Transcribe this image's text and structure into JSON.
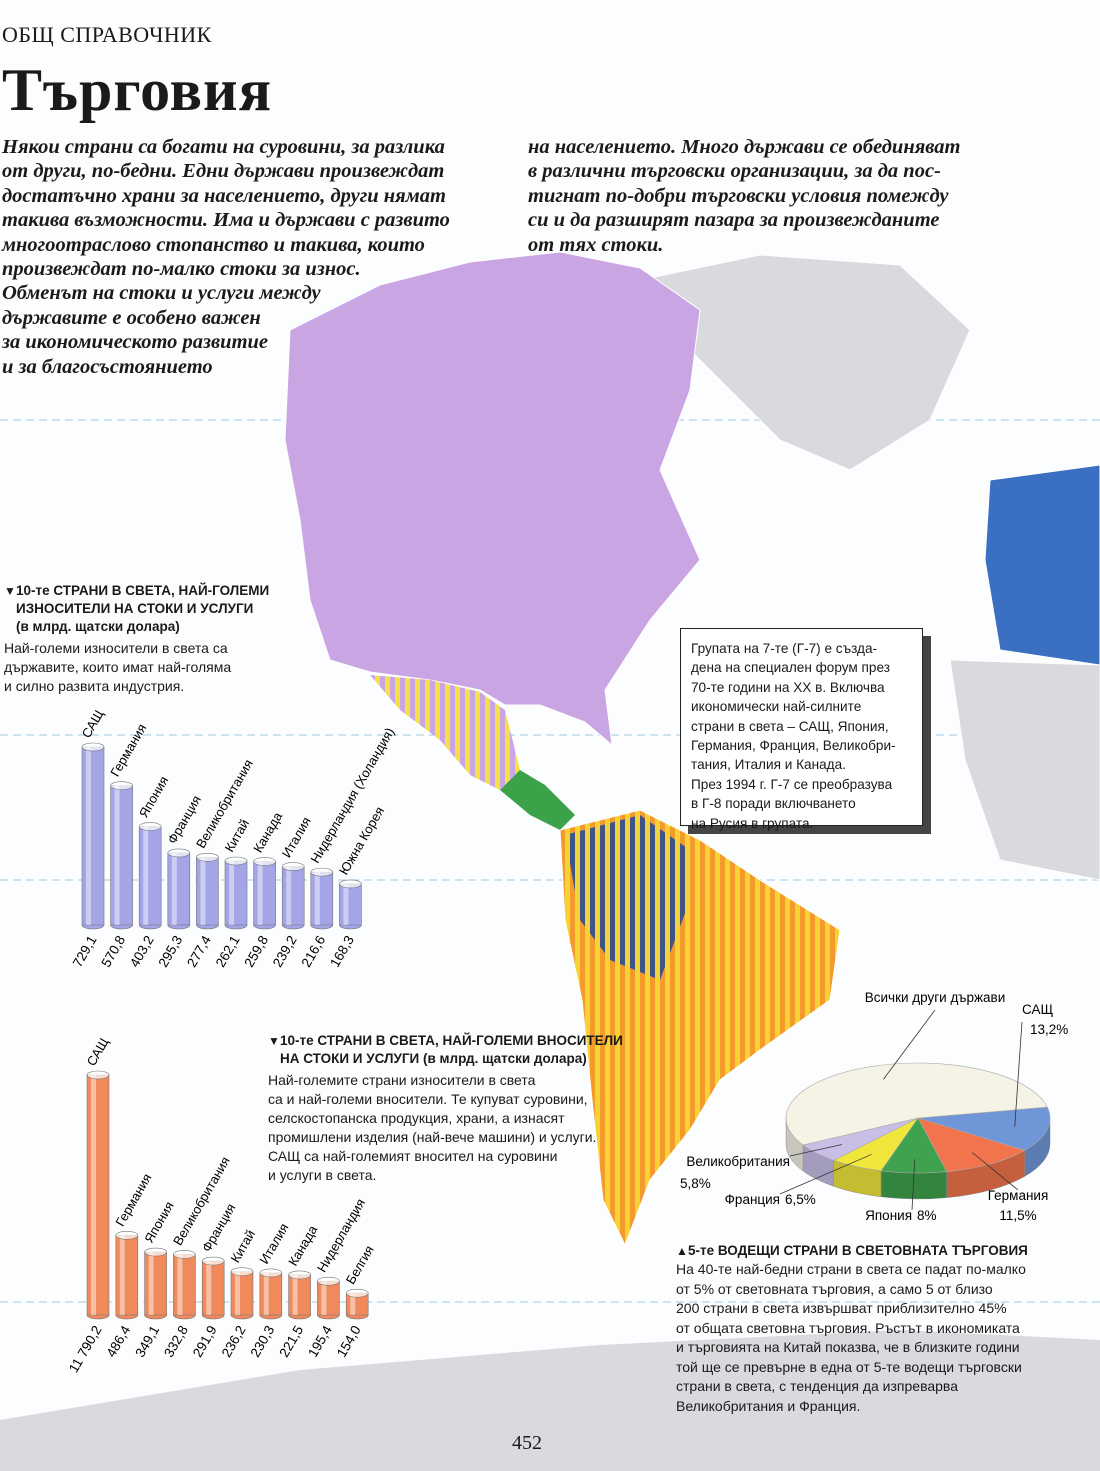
{
  "header": {
    "section": "ОБЩ СПРАВОЧНИК",
    "title": "Търговия"
  },
  "intro": {
    "left": [
      "Някои страни са богати на суровини, за разлика",
      "от други, по-бедни. Едни държави произвеждат",
      "достатъчно храни за населението, други нямат",
      "такива възможности. Има и държави с развито",
      "многоотраслово стопанство и такива, които",
      "произвеждат по-малко стоки за износ.",
      "Обменът на стоки и услуги между",
      "държавите е особено важен",
      "за икономическото развитие",
      "и за благосъстоянието"
    ],
    "right": [
      "на населението. Много държави се обединяват",
      "в различни търговски организации, за да пос-",
      "тигнат по-добри търговски условия помежду",
      "си и да разширят пазара за произвежданите",
      "от тях стоки."
    ]
  },
  "g7_box": {
    "lines": [
      "Групата на 7-те (Г-7) е създа-",
      "дена на специален форум през",
      "70-те години на XX в. Включва",
      "икономически най-силните",
      "страни в света – САЩ, Япония,",
      "Германия, Франция, Великобри-",
      "тания, Италия и Канада.",
      "През 1994 г. Г-7 се преобразува",
      "в Г-8 поради включването",
      "на Русия в групата."
    ]
  },
  "chart_data": [
    {
      "type": "bar",
      "title": [
        "10-те СТРАНИ В СВЕТА, НАЙ-ГОЛЕМИ",
        "ИЗНОСИТЕЛИ НА СТОКИ И УСЛУГИ",
        "(в млрд. щатски долара)"
      ],
      "description": [
        "Най-големи износители в света са",
        "държавите, които имат най-голяма",
        "и силно развита индустрия."
      ],
      "categories": [
        "САЩ",
        "Германия",
        "Япония",
        "Франция",
        "Великобритания",
        "Китай",
        "Канада",
        "Италия",
        "Нидерландия (Холандия)",
        "Южна Корея"
      ],
      "values": [
        729.1,
        570.8,
        403.2,
        295.3,
        277.4,
        262.1,
        259.8,
        239.2,
        216.6,
        168.3
      ],
      "value_labels": [
        "729,1",
        "570,8",
        "403,2",
        "295,3",
        "277,4",
        "262,1",
        "259,8",
        "239,2",
        "216,6",
        "168,3"
      ],
      "color": "#a3a5e6"
    },
    {
      "type": "bar",
      "title": [
        "10-те СТРАНИ В СВЕТА, НАЙ-ГОЛЕМИ ВНОСИТЕЛИ",
        "НА СТОКИ И УСЛУГИ (в млрд. щатски долара)"
      ],
      "description": [
        "Най-големите страни износители в света",
        "са и най-големи вносители. Те купуват суровини,",
        "селскостопанска продукция, храни, а изнасят",
        "промишлени изделия (най-вече машини) и услуги.",
        "САЩ са най-големият вносител на суровини",
        "и услуги в света."
      ],
      "categories": [
        "САЩ",
        "Германия",
        "Япония",
        "Великобритания",
        "Франция",
        "Китай",
        "Италия",
        "Канада",
        "Нидерландия",
        "Белгия"
      ],
      "values": [
        11790.2,
        486.4,
        349.1,
        332.8,
        291.9,
        236.2,
        230.3,
        221.5,
        195.4,
        154.0
      ],
      "value_labels": [
        "11 790,2",
        "486,4",
        "349,1",
        "332,8",
        "291,9",
        "236,2",
        "230,3",
        "221,5",
        "195,4",
        "154,0"
      ],
      "color": "#f08a5c",
      "log_scale": true
    },
    {
      "type": "pie",
      "title": [
        "5-те ВОДЕЩИ СТРАНИ В СВЕТОВНАТА ТЪРГОВИЯ"
      ],
      "description": [
        "На 40-те най-бедни страни в света се падат по-малко",
        "от 5% от световната търговия, а само 5 от близо",
        "200 страни в света извършват приблизително 45%",
        "от общата световна търговия. Ръстът в икономиката",
        "и търговията на Китай показва, че в близките години",
        "той ще се превърне в една от 5-те водещи търговски",
        "страни в света, с тенденция да изпреварва",
        "Великобритания и Франция."
      ],
      "categories": [
        "САЩ",
        "Германия",
        "Япония",
        "Франция",
        "Великобритания",
        "Всички други държави"
      ],
      "values": [
        13.2,
        11.5,
        8,
        6.5,
        5.8,
        55
      ],
      "value_labels": [
        "13,2%",
        "11,5%",
        "8%",
        "6,5%",
        "5,8%",
        null
      ],
      "colors": [
        "#6f97d8",
        "#f2744c",
        "#3fa24e",
        "#f1e73c",
        "#c9bfe6",
        "#f5f2e6"
      ]
    }
  ],
  "page_number": "452"
}
